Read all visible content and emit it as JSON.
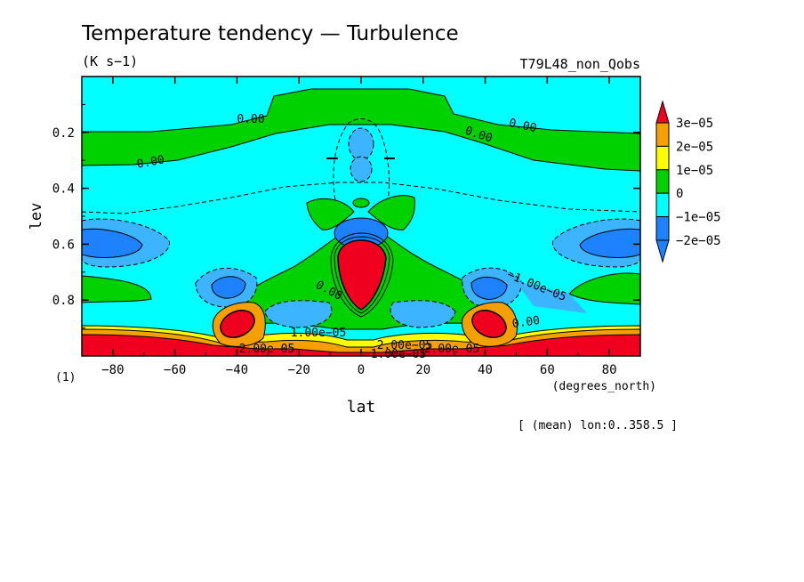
{
  "chart_data": {
    "type": "heatmap",
    "title": "Temperature tendency — Turbulence",
    "units": "(K s−1)",
    "experiment": "T79L48_non_Qobs",
    "xlabel": "lat",
    "xunits": "(degrees_north)",
    "ylabel": "lev",
    "yunits": "(1)",
    "footnote": "[ (mean) lon:0..358.5 ]",
    "xlim": [
      -90,
      90
    ],
    "ylim": [
      0.0,
      1.0
    ],
    "y_inverted": true,
    "x_ticks": [
      "−80",
      "−60",
      "−40",
      "−20",
      "0",
      "20",
      "40",
      "60",
      "80"
    ],
    "x_tick_values": [
      -80,
      -60,
      -40,
      -20,
      0,
      20,
      40,
      60,
      80
    ],
    "y_ticks": [
      "0.2",
      "0.4",
      "0.6",
      "0.8"
    ],
    "y_tick_values": [
      0.2,
      0.4,
      0.6,
      0.8
    ],
    "colorbar": {
      "labels": [
        "3e−05",
        "2e−05",
        "1e−05",
        "0",
        "−1e−05",
        "−2e−05"
      ],
      "colors": [
        "#f0001e",
        "#f5a000",
        "#ffff00",
        "#00d200",
        "#00ffff",
        "#1e82ff"
      ]
    },
    "contour_labels": [
      "0.00",
      "0.00",
      "0.00",
      "0.00",
      "0.00",
      "0.00",
      "−1.00e−05",
      "1.00e−05",
      "2.00e−05",
      "2.00e−05",
      "2.00e−05",
      "1.00e−05"
    ]
  }
}
